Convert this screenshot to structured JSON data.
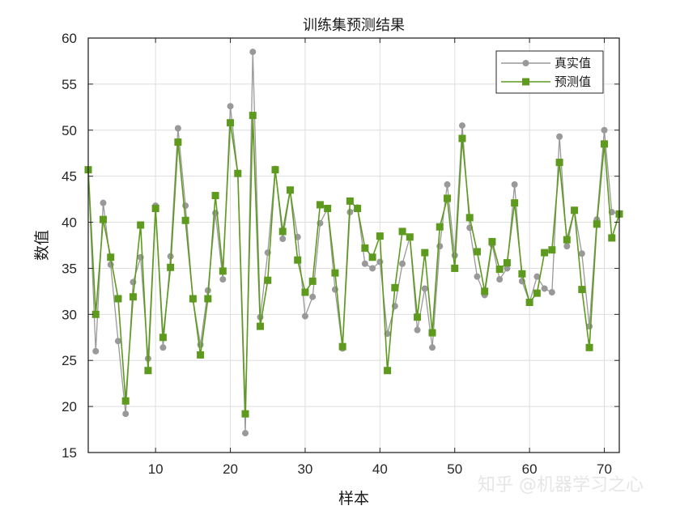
{
  "chart_data": {
    "type": "line",
    "title": "训练集预测结果",
    "xlabel": "样本",
    "ylabel": "数值",
    "xlim": [
      1,
      72
    ],
    "ylim": [
      15,
      60
    ],
    "xticks": [
      10,
      20,
      30,
      40,
      50,
      60,
      70
    ],
    "yticks": [
      15,
      20,
      25,
      30,
      35,
      40,
      45,
      50,
      55,
      60
    ],
    "grid": true,
    "legend_position": "top-right",
    "x": [
      1,
      2,
      3,
      4,
      5,
      6,
      7,
      8,
      9,
      10,
      11,
      12,
      13,
      14,
      15,
      16,
      17,
      18,
      19,
      20,
      21,
      22,
      23,
      24,
      25,
      26,
      27,
      28,
      29,
      30,
      31,
      32,
      33,
      34,
      35,
      36,
      37,
      38,
      39,
      40,
      41,
      42,
      43,
      44,
      45,
      46,
      47,
      48,
      49,
      50,
      51,
      52,
      53,
      54,
      55,
      56,
      57,
      58,
      59,
      60,
      61,
      62,
      63,
      64,
      65,
      66,
      67,
      68,
      69,
      70,
      71,
      72
    ],
    "series": [
      {
        "name": "真实值",
        "color": "#999999",
        "marker": "circle",
        "values": [
          45.7,
          26.0,
          42.1,
          35.4,
          27.1,
          19.2,
          33.5,
          36.2,
          25.2,
          41.8,
          26.4,
          36.3,
          50.2,
          41.8,
          31.6,
          26.7,
          32.6,
          41.0,
          33.8,
          52.6,
          45.3,
          17.1,
          58.5,
          29.7,
          36.7,
          45.8,
          38.2,
          43.4,
          38.4,
          29.8,
          31.9,
          39.9,
          41.5,
          32.7,
          26.3,
          41.1,
          41.6,
          35.5,
          35.0,
          35.7,
          27.9,
          30.9,
          35.5,
          38.4,
          28.3,
          32.8,
          26.4,
          37.4,
          44.1,
          36.4,
          50.5,
          39.4,
          34.1,
          32.1,
          37.6,
          33.8,
          35.0,
          44.1,
          33.6,
          31.3,
          34.1,
          32.8,
          32.4,
          49.3,
          37.4,
          41.3,
          36.6,
          28.7,
          40.3,
          50.0,
          41.1,
          40.9
        ]
      },
      {
        "name": "预测值",
        "color": "#5e9a1e",
        "marker": "square",
        "values": [
          45.7,
          30.0,
          40.3,
          36.2,
          31.7,
          20.6,
          31.9,
          39.7,
          23.9,
          41.5,
          27.5,
          35.1,
          48.7,
          40.2,
          31.7,
          25.6,
          31.7,
          42.9,
          34.7,
          50.8,
          45.3,
          19.2,
          51.6,
          28.7,
          33.7,
          45.7,
          39.0,
          43.5,
          35.9,
          32.4,
          33.6,
          41.9,
          41.5,
          34.5,
          26.5,
          42.3,
          41.5,
          37.2,
          36.2,
          38.5,
          23.9,
          32.9,
          39.0,
          38.4,
          29.7,
          36.7,
          28.0,
          39.5,
          42.6,
          35.0,
          49.1,
          40.5,
          36.8,
          32.5,
          37.9,
          34.9,
          35.6,
          42.1,
          34.4,
          31.3,
          32.3,
          36.7,
          37.0,
          46.5,
          38.1,
          41.3,
          32.7,
          26.4,
          39.8,
          48.5,
          38.3,
          40.9
        ]
      }
    ]
  },
  "watermark": "知乎 @机器学习之心"
}
